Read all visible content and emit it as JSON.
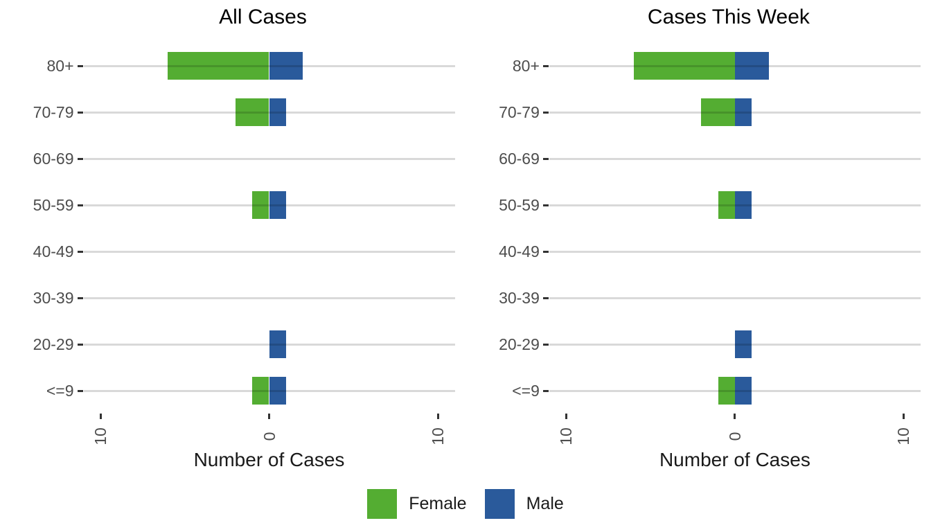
{
  "chart_data": {
    "type": "bar",
    "orientation": "horizontal-diverging",
    "categories": [
      "80+",
      "70-79",
      "60-69",
      "50-59",
      "40-49",
      "30-39",
      "20-29",
      "<=9"
    ],
    "panels": [
      {
        "title": "All Cases",
        "series": [
          {
            "name": "Female",
            "values": [
              6,
              2,
              0,
              1,
              0,
              0,
              0,
              1
            ]
          },
          {
            "name": "Male",
            "values": [
              2,
              1,
              0,
              1,
              0,
              0,
              1,
              1
            ]
          }
        ]
      },
      {
        "title": "Cases This Week",
        "series": [
          {
            "name": "Female",
            "values": [
              6,
              2,
              0,
              1,
              0,
              0,
              0,
              1
            ]
          },
          {
            "name": "Male",
            "values": [
              2,
              1,
              0,
              1,
              0,
              0,
              1,
              1
            ]
          }
        ]
      }
    ],
    "xlabel": "Number of Cases",
    "xlim": [
      -11,
      11
    ],
    "x_ticks": [
      -10,
      0,
      10
    ],
    "x_tick_labels": [
      "10",
      "0",
      "10"
    ],
    "grid": "horizontal major gridlines only, light gray",
    "legend_position": "bottom",
    "legend": [
      {
        "label": "Female",
        "color": "#54AD32"
      },
      {
        "label": "Male",
        "color": "#2A5A9B"
      }
    ]
  },
  "colors": {
    "female": "#54AD32",
    "male": "#2A5A9B",
    "gridline": "#D9D9D9",
    "tick": "#333333",
    "axis_text": "#4D4D4D",
    "title_text": "#000000",
    "background": "#FFFFFF"
  }
}
